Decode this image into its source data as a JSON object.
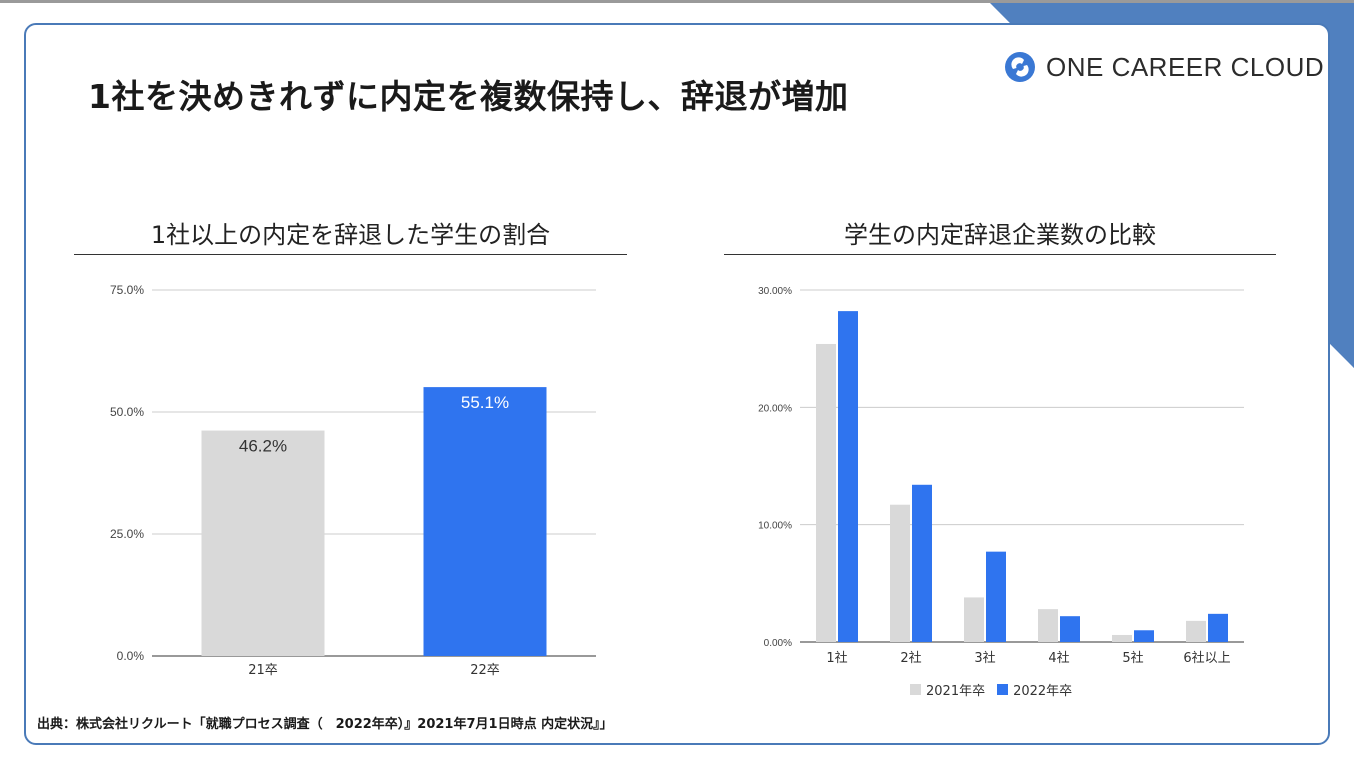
{
  "page": {
    "title": "1社を決めきれずに内定を複数保持し、辞退が増加",
    "logo_text": "ONE CAREER CLOUD",
    "logo_icon": "circular-arrows-logo-icon",
    "source": "出典：株式会社リクルート「就職プロセス調査（　2022年卒）』2021年7月1日時点 内定状況』」",
    "accent_color": "#4a7ab8"
  },
  "chart_data": [
    {
      "type": "bar",
      "title": "1社以上の内定を辞退した学生の割合",
      "categories": [
        "21卒",
        "22卒"
      ],
      "values": [
        46.2,
        55.1
      ],
      "value_labels": [
        "46.2%",
        "55.1%"
      ],
      "colors": [
        "#d9d9d9",
        "#2f74ef"
      ],
      "label_colors": [
        "#333333",
        "#ffffff"
      ],
      "ylim": [
        0,
        75
      ],
      "yticks": [
        0,
        25,
        50,
        75
      ],
      "ytick_labels": [
        "0.0%",
        "25.0%",
        "50.0%",
        "75.0%"
      ],
      "grid": true
    },
    {
      "type": "bar",
      "title": "学生の内定辞退企業数の比較",
      "categories": [
        "1社",
        "2社",
        "3社",
        "4社",
        "5社",
        "6社以上"
      ],
      "series": [
        {
          "name": "2021年卒",
          "color": "#d9d9d9",
          "values": [
            25.4,
            11.7,
            3.8,
            2.8,
            0.6,
            1.8
          ]
        },
        {
          "name": "2022年卒",
          "color": "#2f74ef",
          "values": [
            28.2,
            13.4,
            7.7,
            2.2,
            1.0,
            2.4
          ]
        }
      ],
      "ylim": [
        0,
        30
      ],
      "yticks": [
        0,
        10,
        20,
        30
      ],
      "ytick_labels": [
        "0.00%",
        "10.00%",
        "20.00%",
        "30.00%"
      ],
      "grid": true,
      "legend": "bottom"
    }
  ]
}
